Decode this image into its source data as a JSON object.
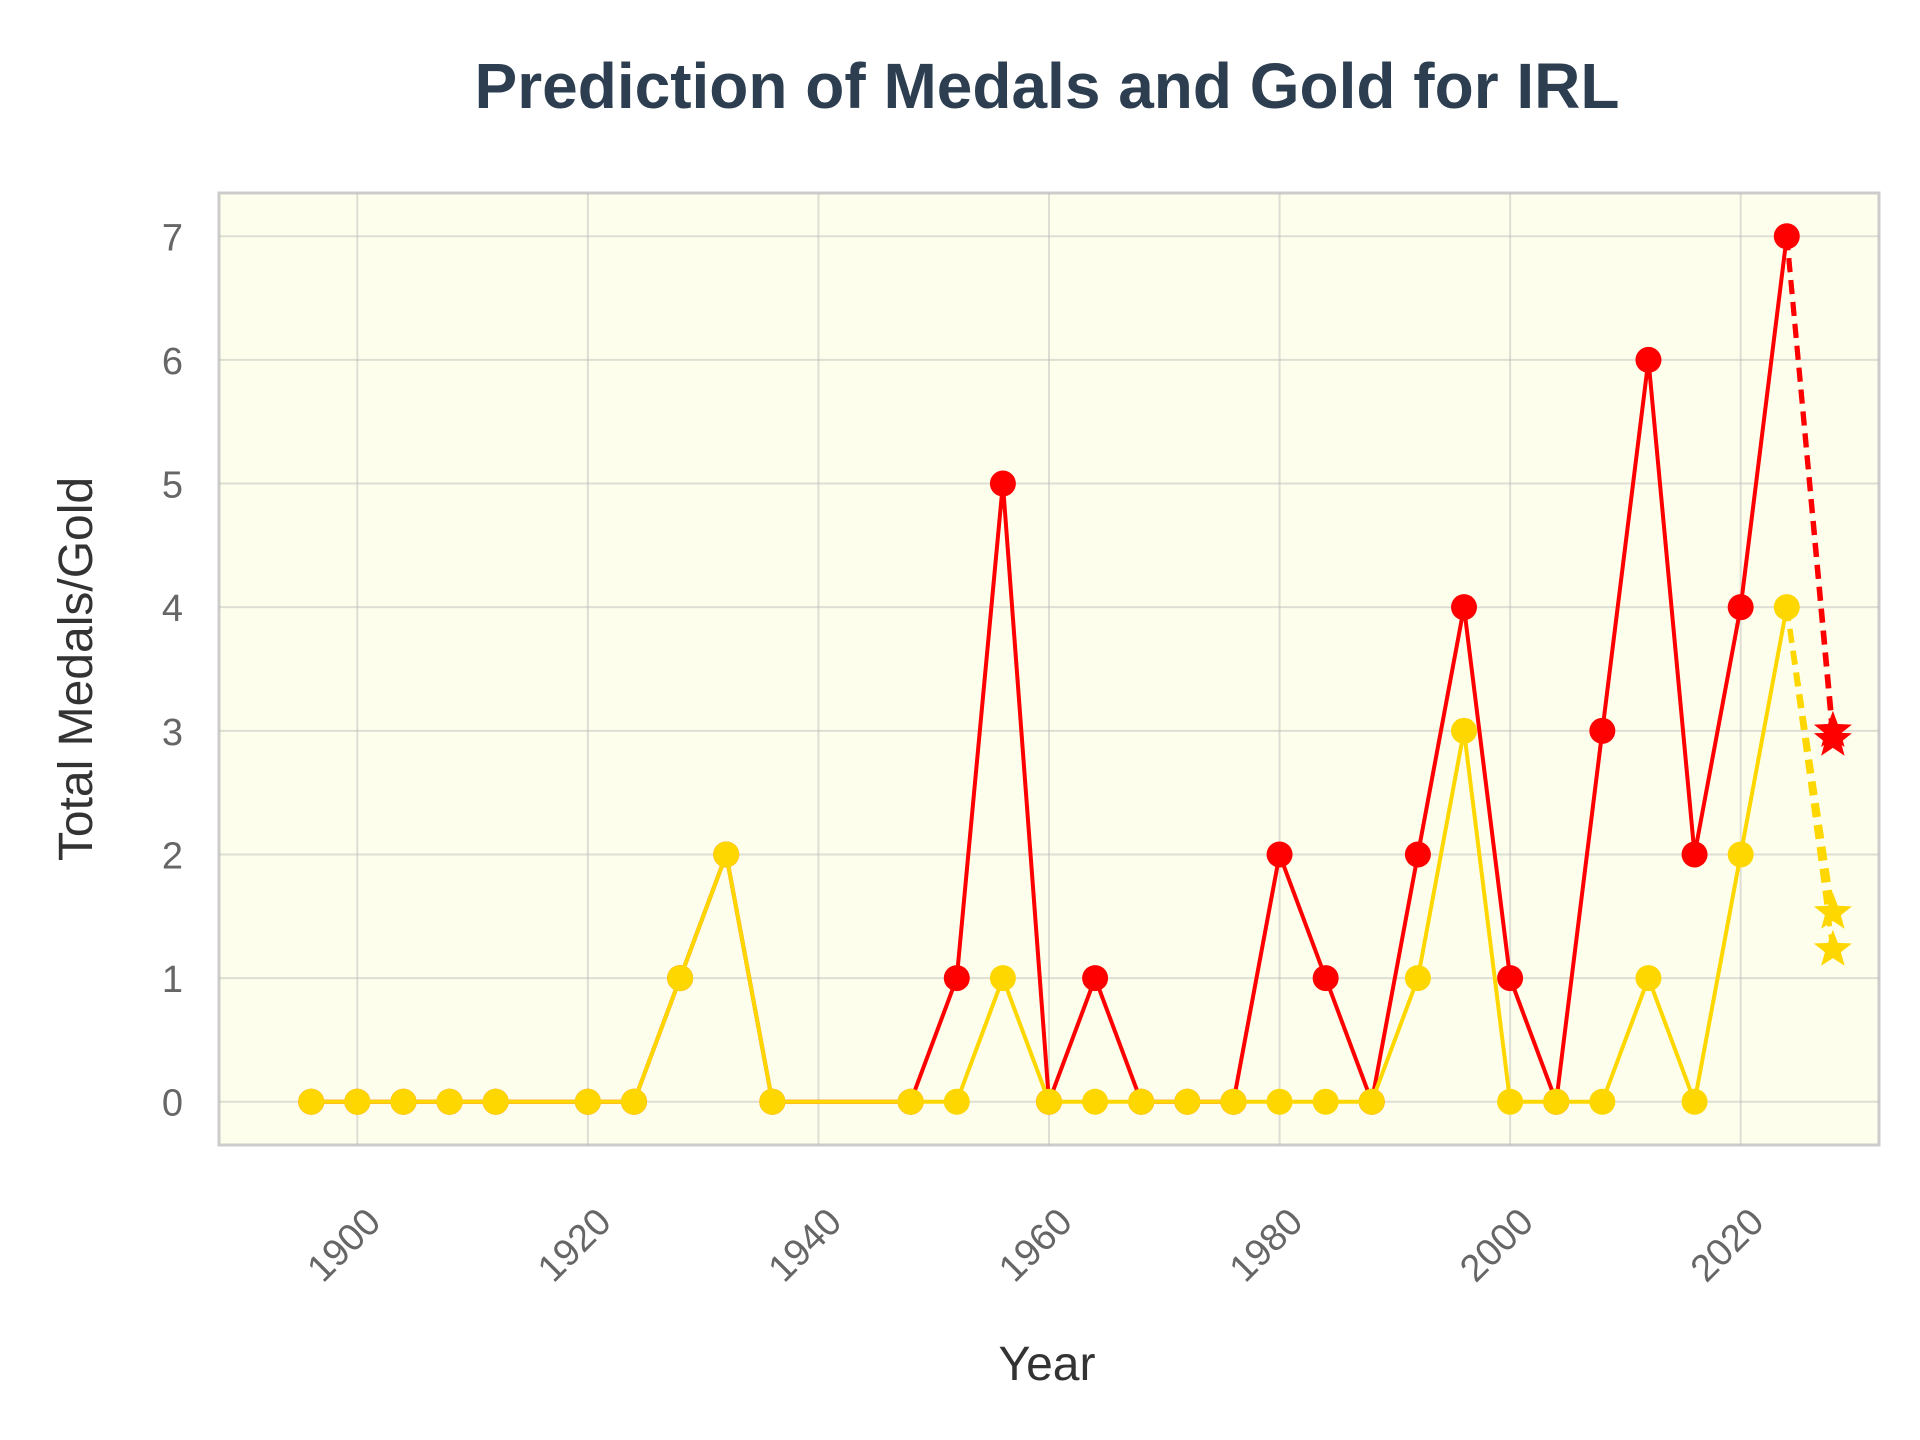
{
  "chart_data": {
    "type": "line",
    "title": "Prediction of Medals and Gold for IRL",
    "xlabel": "Year",
    "ylabel": "Total Medals/Gold",
    "xlim": [
      1888,
      2032
    ],
    "ylim": [
      -0.35,
      7.35
    ],
    "xticks": [
      1900,
      1920,
      1940,
      1960,
      1980,
      2000,
      2020
    ],
    "yticks": [
      0,
      1,
      2,
      3,
      4,
      5,
      6,
      7
    ],
    "grid": true,
    "background_color": "#fefeec",
    "x": [
      1896,
      1900,
      1904,
      1908,
      1912,
      1920,
      1924,
      1928,
      1932,
      1936,
      1948,
      1952,
      1956,
      1960,
      1964,
      1968,
      1972,
      1976,
      1980,
      1984,
      1988,
      1992,
      1996,
      2000,
      2004,
      2008,
      2012,
      2016,
      2020,
      2024
    ],
    "series": [
      {
        "key": "medals",
        "color": "#ff0000",
        "values": [
          0,
          0,
          0,
          0,
          0,
          0,
          0,
          1,
          2,
          0,
          0,
          1,
          5,
          0,
          1,
          0,
          0,
          0,
          2,
          1,
          0,
          2,
          4,
          1,
          0,
          3,
          6,
          2,
          4,
          7
        ]
      },
      {
        "key": "gold",
        "color": "#ffd700",
        "values": [
          0,
          0,
          0,
          0,
          0,
          0,
          0,
          1,
          2,
          0,
          0,
          0,
          1,
          0,
          0,
          0,
          0,
          0,
          0,
          0,
          0,
          1,
          3,
          0,
          0,
          0,
          1,
          0,
          2,
          4
        ]
      }
    ],
    "predictions": [
      {
        "key": "medals",
        "color": "#ff0000",
        "x": 2028,
        "values": [
          3.0,
          2.93
        ]
      },
      {
        "key": "gold",
        "color": "#ffd700",
        "x": 2028,
        "values": [
          1.53,
          1.23
        ]
      }
    ]
  }
}
